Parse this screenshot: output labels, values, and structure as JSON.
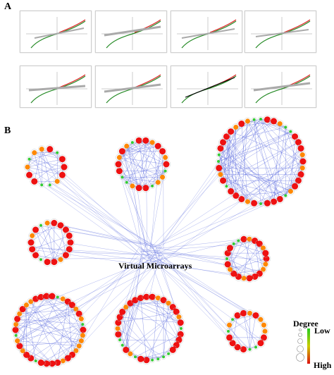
{
  "panels": {
    "a_label": "A",
    "b_label": "B"
  },
  "network": {
    "center_label": "Virtual Microarrays",
    "legend": {
      "title": "Degree",
      "low": "Low",
      "high": "High",
      "low_color": "#22cc22",
      "mid_color": "#cccc00",
      "high_color": "#dd1111"
    },
    "edge_color": "#5566dd",
    "node_high_color": "#ee1111",
    "node_mid_color": "#ff8800",
    "node_low_color": "#33cc33"
  }
}
